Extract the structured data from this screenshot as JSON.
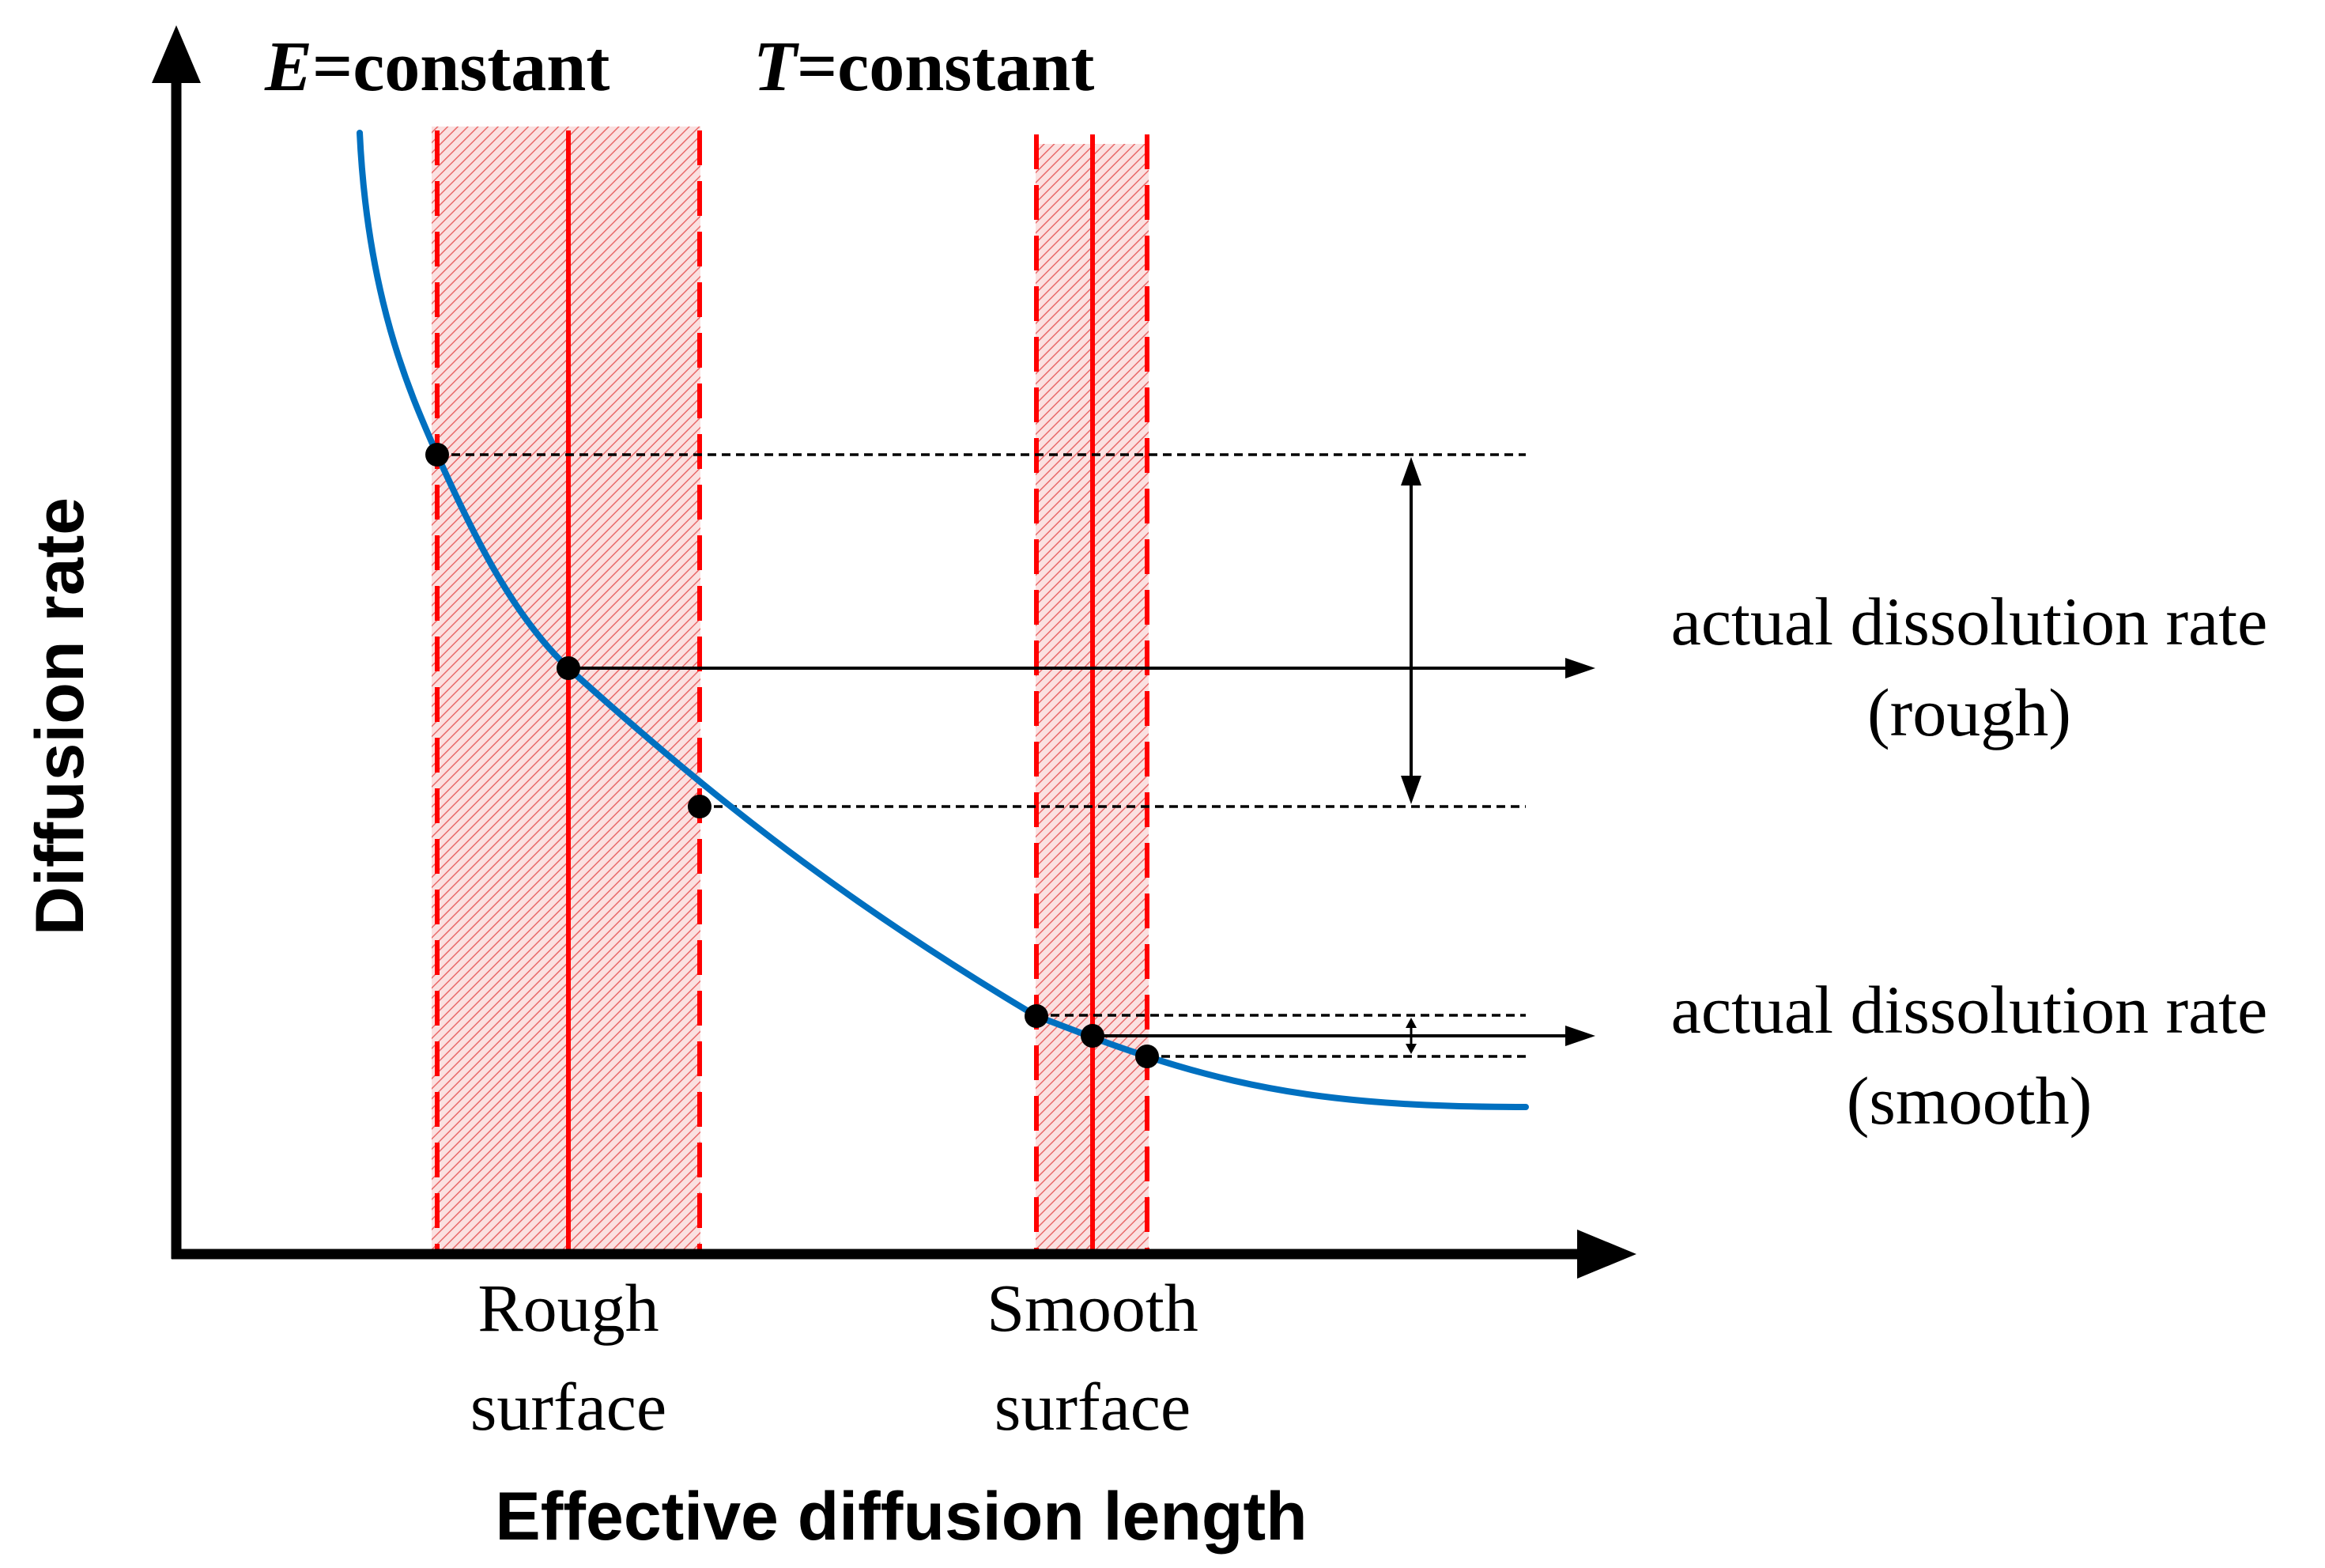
{
  "header": {
    "e_var": "E",
    "e_rest": "=constant",
    "t_var": "T",
    "t_rest": "=constant"
  },
  "axes": {
    "ylabel": "Diffusion rate",
    "xlabel": "Effective diffusion length"
  },
  "regions": {
    "rough_line1": "Rough",
    "rough_line2": "surface",
    "smooth_line1": "Smooth",
    "smooth_line2": "surface"
  },
  "annotations": {
    "rough_line1": "actual dissolution rate",
    "rough_line2": "(rough)",
    "smooth_line1": "actual dissolution rate",
    "smooth_line2": "(smooth)"
  },
  "colors": {
    "curve": "#0070c0",
    "band_line": "#ff0000",
    "band_fill": "#f4b8b8",
    "ink": "#000000"
  }
}
